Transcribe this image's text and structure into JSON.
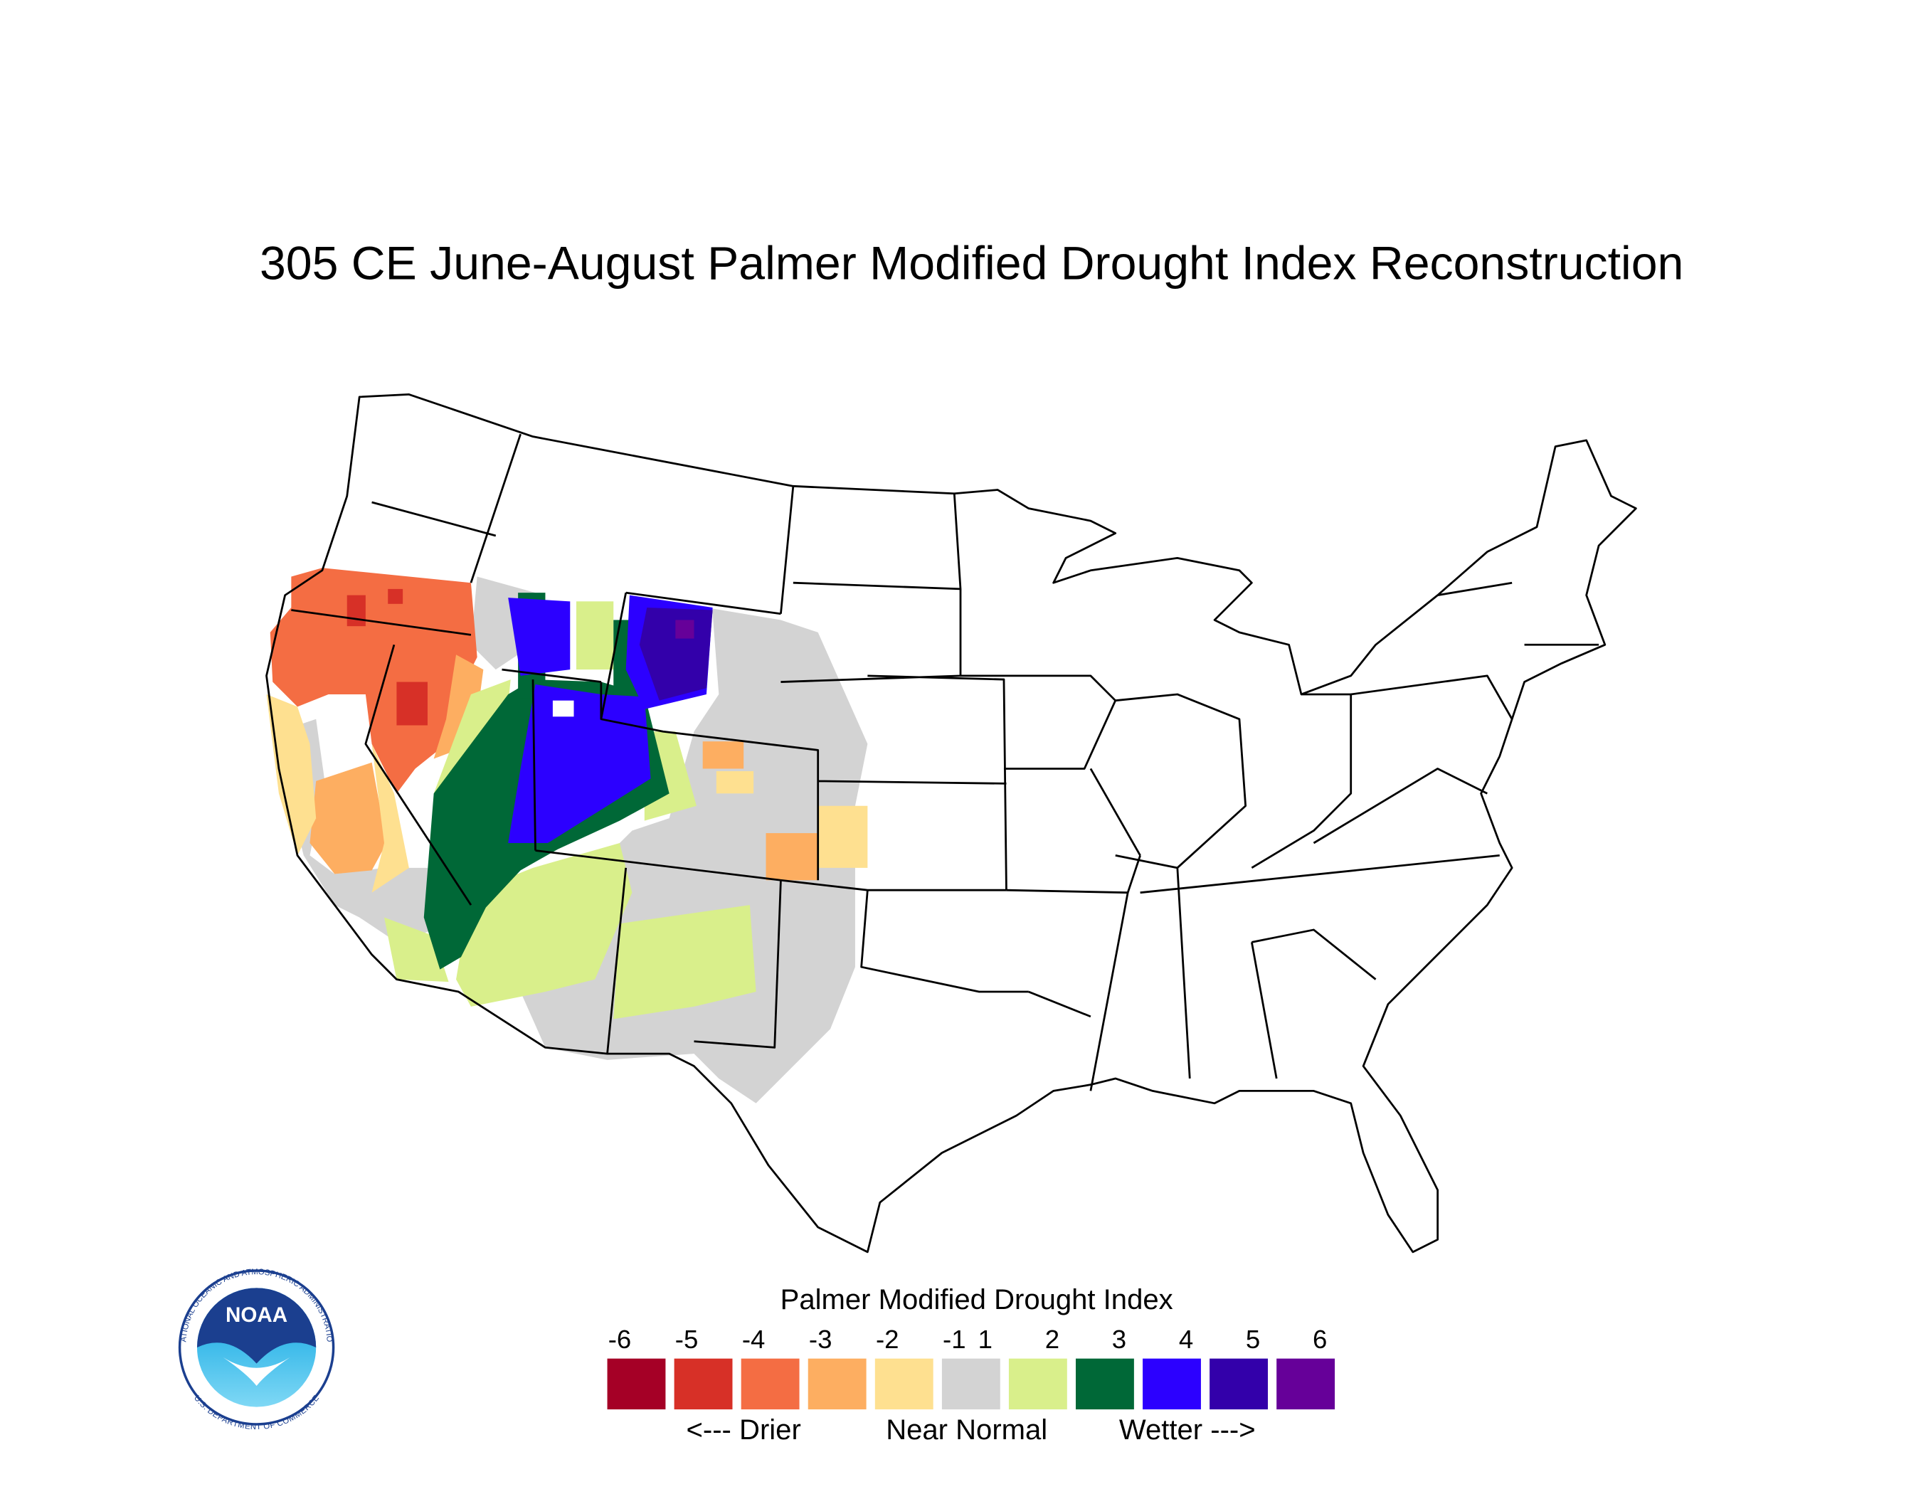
{
  "title": "305 CE  June-August  Palmer Modified Drought Index Reconstruction",
  "legend": {
    "title": "Palmer Modified Drought Index",
    "ticks": [
      -6,
      -5,
      -4,
      -3,
      -2,
      -1,
      1,
      2,
      3,
      4,
      5,
      6
    ],
    "colors": [
      "#a50026",
      "#d73027",
      "#f46d43",
      "#fdae61",
      "#fee090",
      "#d3d3d3",
      "#d9ef8b",
      "#006837",
      "#2c00ff",
      "#3300aa",
      "#660099"
    ],
    "captions": [
      "<--- Drier",
      "Near Normal",
      "Wetter --->"
    ]
  },
  "logo": {
    "name": "NOAA",
    "ring_top": "NATIONAL OCEANIC AND ATMOSPHERIC ADMINISTRATION",
    "ring_bottom": "U.S. DEPARTMENT OF COMMERCE"
  }
}
